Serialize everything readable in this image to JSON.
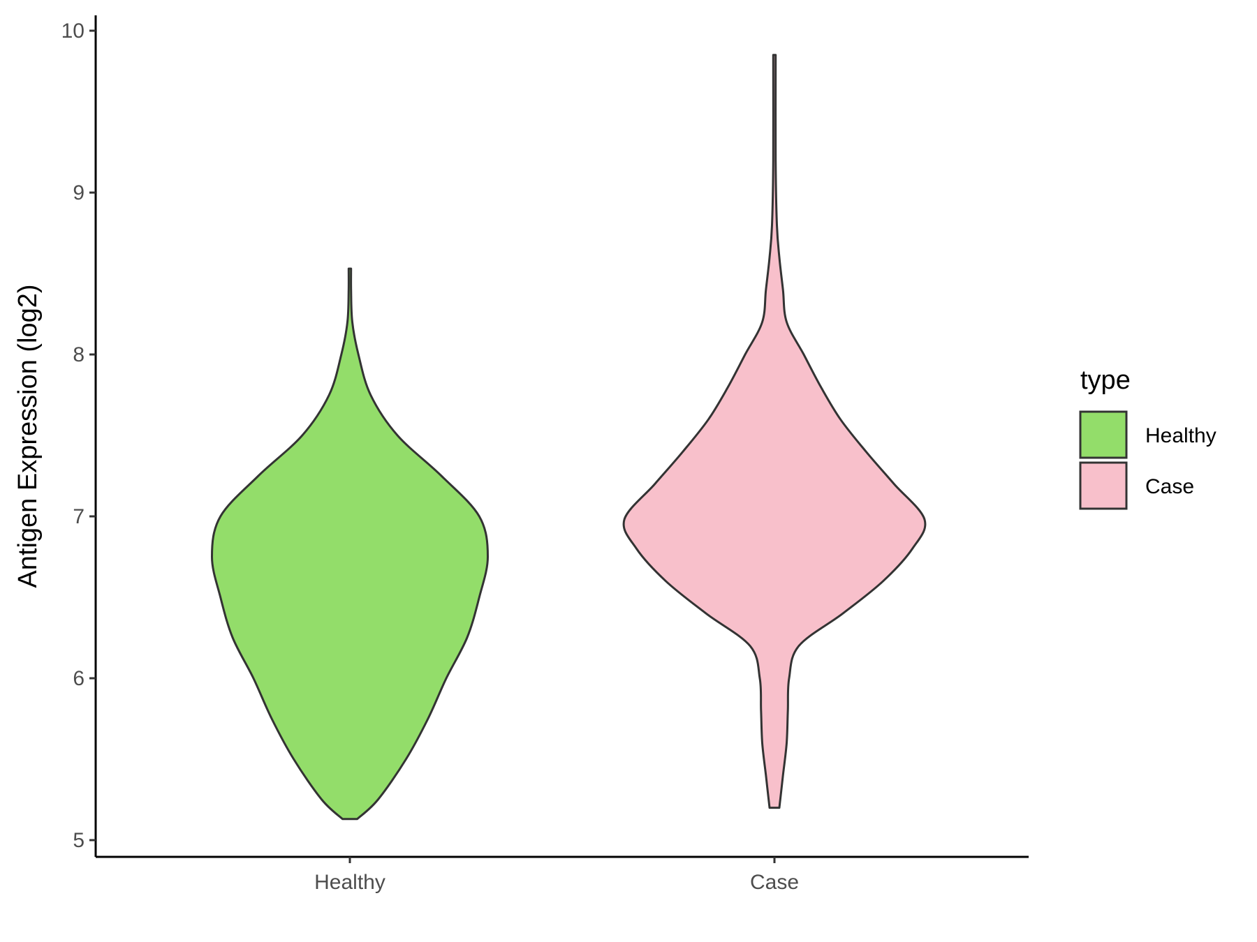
{
  "chart_data": {
    "type": "violin",
    "title": "",
    "xlabel": "",
    "ylabel": "Antigen Expression (log2)",
    "ylim": [
      4.9,
      10.1
    ],
    "yticks": [
      5,
      6,
      7,
      8,
      9,
      10
    ],
    "categories": [
      "Healthy",
      "Case"
    ],
    "legend": {
      "title": "type",
      "placement": "right"
    },
    "colors": {
      "Healthy": "#93dd6a",
      "Case": "#f8c0cb",
      "outline": "#333333"
    },
    "series": [
      {
        "name": "Healthy",
        "y_min": 5.13,
        "y_max": 8.53,
        "profile": [
          [
            5.13,
            0.06
          ],
          [
            5.25,
            0.23
          ],
          [
            5.5,
            0.46
          ],
          [
            5.75,
            0.64
          ],
          [
            6.0,
            0.79
          ],
          [
            6.25,
            0.96
          ],
          [
            6.5,
            1.06
          ],
          [
            6.75,
            1.13
          ],
          [
            7.0,
            1.06
          ],
          [
            7.25,
            0.75
          ],
          [
            7.5,
            0.39
          ],
          [
            7.75,
            0.17
          ],
          [
            8.0,
            0.07
          ],
          [
            8.2,
            0.02
          ],
          [
            8.4,
            0.01
          ],
          [
            8.53,
            0.01
          ]
        ]
      },
      {
        "name": "Case",
        "y_min": 5.2,
        "y_max": 9.85,
        "profile": [
          [
            5.2,
            0.04
          ],
          [
            5.4,
            0.07
          ],
          [
            5.6,
            0.1
          ],
          [
            5.8,
            0.11
          ],
          [
            6.0,
            0.12
          ],
          [
            6.2,
            0.2
          ],
          [
            6.4,
            0.56
          ],
          [
            6.6,
            0.89
          ],
          [
            6.8,
            1.13
          ],
          [
            6.98,
            1.23
          ],
          [
            7.2,
            0.98
          ],
          [
            7.4,
            0.75
          ],
          [
            7.6,
            0.54
          ],
          [
            7.8,
            0.38
          ],
          [
            8.0,
            0.24
          ],
          [
            8.2,
            0.1
          ],
          [
            8.4,
            0.07
          ],
          [
            8.6,
            0.04
          ],
          [
            8.8,
            0.02
          ],
          [
            9.2,
            0.01
          ],
          [
            9.85,
            0.01
          ]
        ]
      }
    ]
  }
}
